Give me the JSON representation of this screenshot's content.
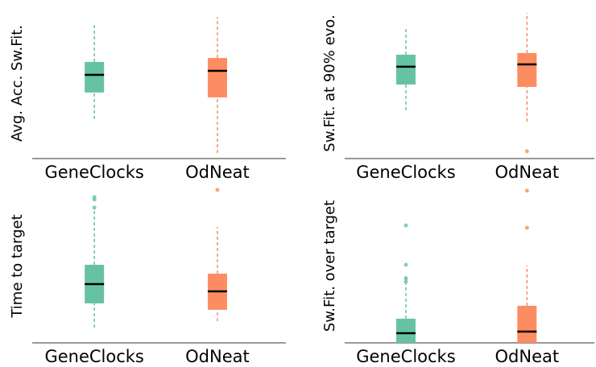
{
  "chart_data": [
    {
      "type": "box",
      "ylabel": "Avg. Acc. Sw.Fit.",
      "categories": [
        "GeneClocks",
        "OdNeat"
      ],
      "colors": [
        "#66c2a5",
        "#fc8d62"
      ],
      "ylim": [
        0,
        100
      ],
      "boxes": [
        {
          "whislo": 26.2,
          "q1": 43.9,
          "med": 55.6,
          "q3": 64.2,
          "whishi": 88.8,
          "fliers": []
        },
        {
          "whislo": 3.7,
          "q1": 40.6,
          "med": 58.3,
          "q3": 66.8,
          "whishi": 94.1,
          "fliers": []
        }
      ]
    },
    {
      "type": "box",
      "ylabel": "Sw.Fit. at 90% evo.",
      "categories": [
        "GeneClocks",
        "OdNeat"
      ],
      "colors": [
        "#66c2a5",
        "#fc8d62"
      ],
      "ylim": [
        0,
        100
      ],
      "boxes": [
        {
          "whislo": 32.1,
          "q1": 49.2,
          "med": 61.0,
          "q3": 69.0,
          "whishi": 86.1,
          "fliers": []
        },
        {
          "whislo": 24.6,
          "q1": 47.6,
          "med": 62.6,
          "q3": 70.1,
          "whishi": 96.8,
          "fliers": [
            4.8
          ]
        }
      ]
    },
    {
      "type": "box",
      "ylabel": "Time to target",
      "categories": [
        "GeneClocks",
        "OdNeat"
      ],
      "colors": [
        "#66c2a5",
        "#fc8d62"
      ],
      "ylim": [
        0,
        100
      ],
      "boxes": [
        {
          "whislo": 9.9,
          "q1": 25.7,
          "med": 38.2,
          "q3": 50.8,
          "whishi": 86.9,
          "fliers": [
            94.8,
            93.2,
            88.0
          ]
        },
        {
          "whislo": 14.1,
          "q1": 21.5,
          "med": 33.5,
          "q3": 45.0,
          "whishi": 75.4,
          "fliers": [
            99.5
          ]
        }
      ]
    },
    {
      "type": "box",
      "ylabel": "Sw.Fit. over target",
      "categories": [
        "GeneClocks",
        "OdNeat"
      ],
      "colors": [
        "#66c2a5",
        "#fc8d62"
      ],
      "ylim": [
        0,
        100
      ],
      "boxes": [
        {
          "whislo": 0,
          "q1": 0,
          "med": 6.3,
          "q3": 15.7,
          "whishi": 44.0,
          "fliers": [
            76.4,
            50.8,
            41.9,
            39.8
          ]
        },
        {
          "whislo": 0,
          "q1": 0,
          "med": 7.3,
          "q3": 24.1,
          "whishi": 50.3,
          "fliers": [
            74.9,
            99.0
          ]
        }
      ]
    }
  ]
}
